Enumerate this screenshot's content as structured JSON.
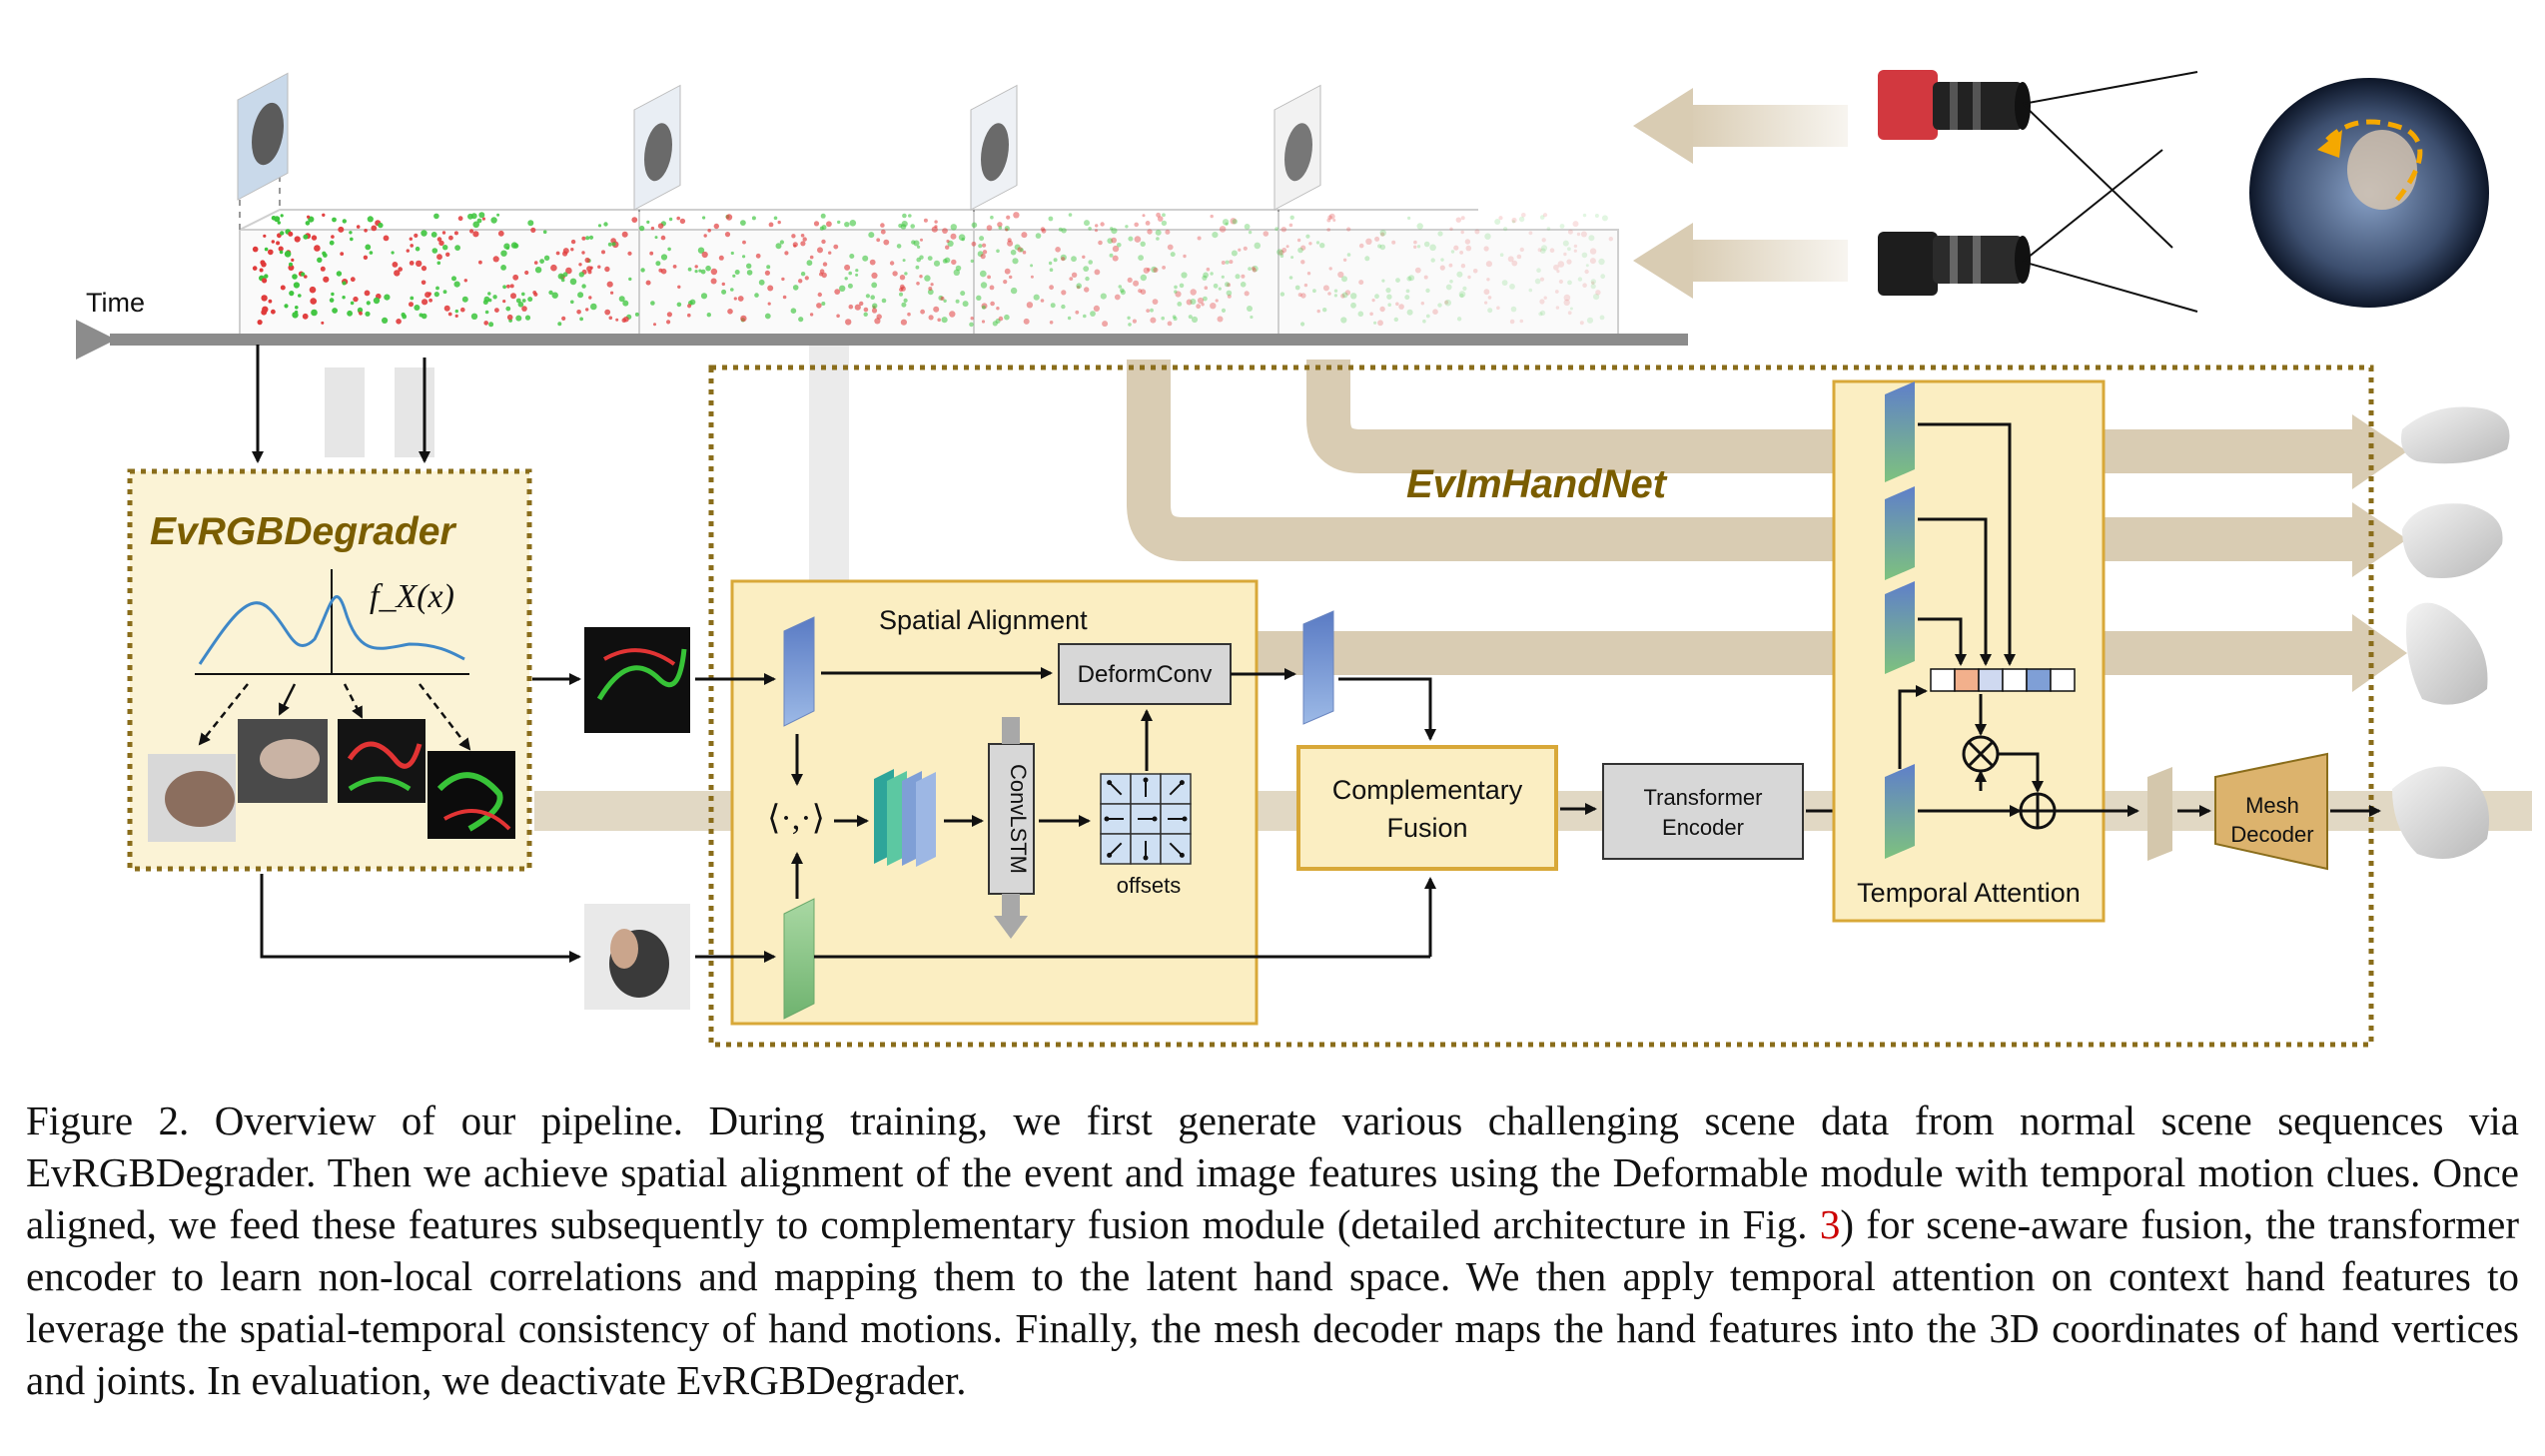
{
  "diagram": {
    "time_label": "Time",
    "degrader_title": "EvRGBDegrader",
    "density_label": "f_X(x)",
    "network_title": "EvImHandNet",
    "spatial_alignment": "Spatial Alignment",
    "deformconv": "DeformConv",
    "convlstm": "ConvLSTM",
    "offsets": "offsets",
    "inner_product": "⟨·,·⟩",
    "fusion_line1": "Complementary",
    "fusion_line2": "Fusion",
    "transformer_line1": "Transformer",
    "transformer_line2": "Encoder",
    "temporal_attention": "Temporal Attention",
    "mesh_line1": "Mesh",
    "mesh_line2": "Decoder",
    "colors": {
      "gold_border": "#8a6d1b",
      "module_fill": "#fbeec2",
      "module_border": "#d8a838",
      "degrader_title": "#7a5d00",
      "gray_box": "#d7d7d7",
      "flow_band": "#d9ccb3",
      "event_red": "#e03a3a",
      "event_green": "#3cc43c",
      "feature_blue": "#7f9fd6",
      "feature_green": "#8fc98f"
    }
  },
  "caption": {
    "part1": "Figure 2. Overview of our pipeline. During training, we first generate various challenging scene data from normal scene sequences via EvRGBDegrader. Then we achieve spatial alignment of the event and image features using the Deformable module with temporal motion clues. Once aligned, we feed these features subsequently to complementary fusion module (detailed architecture in Fig.",
    "ref": "3",
    "part2": ") for scene-aware fusion, the transformer encoder to learn non-local correlations and mapping them to the latent hand space. We then apply temporal attention on context hand features to leverage the spatial-temporal consistency of hand motions. Finally, the mesh decoder maps the hand features into the 3D coordinates of hand vertices and joints. In evaluation, we deactivate EvRGBDegrader."
  }
}
